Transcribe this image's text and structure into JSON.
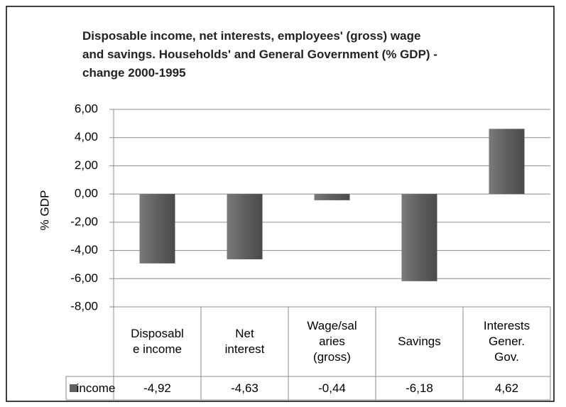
{
  "chart_data": {
    "type": "bar",
    "title": "Disposable income, net interests, employees' (gross)      wage\nand savings. Households' and General Government (% GDP) -\nchange 2000-1995",
    "y_label": "% GDP",
    "categories": [
      "Disposabl\ne income",
      "Net\ninterest",
      "Wage/sal\naries\n(gross)",
      "Savings",
      "Interests\nGener.\nGov."
    ],
    "series": [
      {
        "name": "income",
        "color": "#5f5f5f",
        "values": [
          -4.92,
          -4.63,
          -0.44,
          -6.18,
          4.62
        ],
        "value_labels": [
          "-4,92",
          "-4,63",
          "-0,44",
          "-6,18",
          "4,62"
        ]
      }
    ],
    "ylim": [
      -8,
      6
    ],
    "yticks": [
      {
        "value": -8,
        "label": "-8,00"
      },
      {
        "value": -6,
        "label": "-6,00"
      },
      {
        "value": -4,
        "label": "-4,00"
      },
      {
        "value": -2,
        "label": "-2,00"
      },
      {
        "value": 0,
        "label": "0,00"
      },
      {
        "value": 2,
        "label": "2,00"
      },
      {
        "value": 4,
        "label": "4,00"
      },
      {
        "value": 6,
        "label": "6,00"
      }
    ],
    "grid": true
  }
}
